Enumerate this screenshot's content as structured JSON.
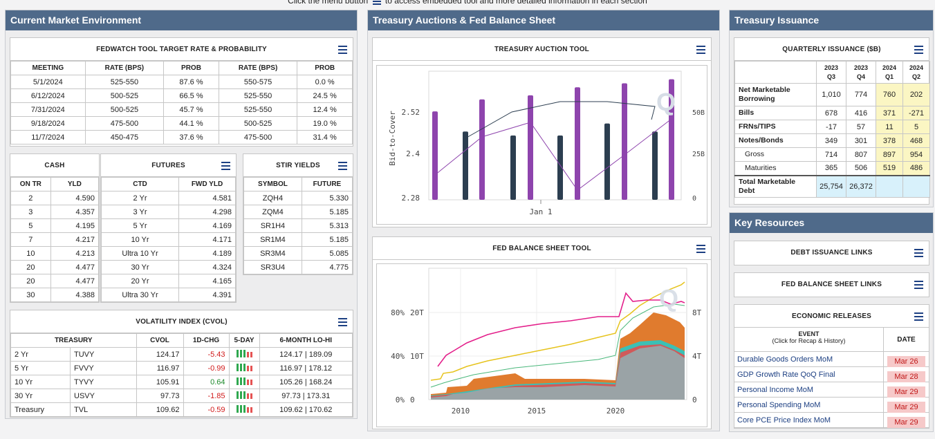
{
  "top_note": {
    "before": "Click the menu button",
    "after": "to access embedded tool and more detailed information in each section"
  },
  "sections": {
    "market": "Current Market Environment",
    "auctions": "Treasury Auctions & Fed Balance Sheet",
    "issuance": "Treasury Issuance",
    "resources": "Key Resources"
  },
  "fedwatch": {
    "title": "FEDWATCH TOOL TARGET RATE & PROBABILITY",
    "headers": [
      "MEETING",
      "RATE (BPS)",
      "PROB",
      "RATE (BPS)",
      "PROB"
    ],
    "rows": [
      [
        "5/1/2024",
        "525-550",
        "87.6 %",
        "550-575",
        "0.0 %"
      ],
      [
        "6/12/2024",
        "500-525",
        "66.5 %",
        "525-550",
        "24.5 %"
      ],
      [
        "7/31/2024",
        "500-525",
        "45.7 %",
        "525-550",
        "12.4 %"
      ],
      [
        "9/18/2024",
        "475-500",
        "44.1 %",
        "500-525",
        "19.0 %"
      ],
      [
        "11/7/2024",
        "450-475",
        "37.6 %",
        "475-500",
        "31.4 %"
      ]
    ]
  },
  "cash": {
    "title": "CASH",
    "headers": [
      "ON TR",
      "YLD"
    ],
    "rows": [
      [
        "2",
        "4.590"
      ],
      [
        "3",
        "4.357"
      ],
      [
        "5",
        "4.195"
      ],
      [
        "7",
        "4.217"
      ],
      [
        "10",
        "4.213"
      ],
      [
        "20",
        "4.477"
      ],
      [
        "20",
        "4.477"
      ],
      [
        "30",
        "4.388"
      ]
    ]
  },
  "futures": {
    "title": "FUTURES",
    "headers": [
      "CTD",
      "FWD YLD"
    ],
    "rows": [
      [
        "2 Yr",
        "4.581"
      ],
      [
        "3 Yr",
        "4.298"
      ],
      [
        "5 Yr",
        "4.169"
      ],
      [
        "10 Yr",
        "4.171"
      ],
      [
        "Ultra 10 Yr",
        "4.189"
      ],
      [
        "30 Yr",
        "4.324"
      ],
      [
        "20 Yr",
        "4.165"
      ],
      [
        "Ultra 30 Yr",
        "4.391"
      ]
    ]
  },
  "stir": {
    "title": "STIR YIELDS",
    "headers": [
      "SYMBOL",
      "FUTURE"
    ],
    "rows": [
      [
        "ZQH4",
        "5.330"
      ],
      [
        "ZQM4",
        "5.185"
      ],
      [
        "SR1H4",
        "5.313"
      ],
      [
        "SR1M4",
        "5.185"
      ],
      [
        "SR3M4",
        "5.085"
      ],
      [
        "SR3U4",
        "4.775"
      ]
    ]
  },
  "cvol": {
    "title": "VOLATILITY INDEX (CVOL)",
    "headers": [
      "TREASURY",
      "CVOL",
      "1D-CHG",
      "5-DAY",
      "6-MONTH LO-HI"
    ],
    "rows": [
      {
        "tenor": "2 Yr",
        "sym": "TUVY",
        "cvol": "124.17",
        "chg": "-5.43",
        "lohi": "124.17 | 189.09",
        "neg": true
      },
      {
        "tenor": "5 Yr",
        "sym": "FVVY",
        "cvol": "116.97",
        "chg": "-0.99",
        "lohi": "116.97 | 178.12",
        "neg": true
      },
      {
        "tenor": "10 Yr",
        "sym": "TYVY",
        "cvol": "105.91",
        "chg": "0.64",
        "lohi": "105.26 | 168.24",
        "neg": false
      },
      {
        "tenor": "30 Yr",
        "sym": "USVY",
        "cvol": "97.73",
        "chg": "-1.85",
        "lohi": "97.73 | 173.31",
        "neg": true
      },
      {
        "tenor": "Treasury",
        "sym": "TVL",
        "cvol": "109.62",
        "chg": "-0.59",
        "lohi": "109.62 | 170.62",
        "neg": true
      }
    ]
  },
  "auction_tool": {
    "title": "TREASURY AUCTION TOOL",
    "chart_data": {
      "type": "bar",
      "ylabel": "Bid-to-Cover",
      "y_ticks": [
        "2.52",
        "2.4",
        "2.28"
      ],
      "y2_ticks": [
        "50B",
        "25B",
        "0"
      ],
      "x_label_tick": "Jan 1",
      "ylim": [
        2.28,
        2.6
      ],
      "series": [
        {
          "color": "#8e44ad",
          "values": [
            2.5,
            2.53,
            2.54,
            2.56,
            2.57,
            2.58
          ]
        },
        {
          "color": "#2c3e50",
          "values": [
            2.45,
            2.44,
            2.44,
            2.47,
            2.45
          ]
        }
      ]
    }
  },
  "balance_tool": {
    "title": "FED BALANCE SHEET TOOL",
    "chart_data": {
      "type": "area",
      "y_ticks_pct": [
        "80%",
        "40%",
        "0%"
      ],
      "y_ticks_t": [
        "20T",
        "10T",
        "0"
      ],
      "y2_ticks": [
        "8T",
        "4T",
        "0"
      ],
      "x_ticks": [
        "2010",
        "2015",
        "2020"
      ]
    }
  },
  "quarterly": {
    "title": "QUARTERLY ISSUANCE ($B)",
    "cols": [
      [
        "2023",
        "Q3"
      ],
      [
        "2023",
        "Q4"
      ],
      [
        "2024",
        "Q1"
      ],
      [
        "2024",
        "Q2"
      ]
    ],
    "rows": [
      {
        "label": "Net Marketable Borrowing",
        "vals": [
          "1,010",
          "774",
          "760",
          "202"
        ],
        "bold": true
      },
      {
        "label": "Bills",
        "vals": [
          "678",
          "416",
          "371",
          "-271"
        ],
        "bold": true
      },
      {
        "label": "FRNs/TIPS",
        "vals": [
          "-17",
          "57",
          "11",
          "5"
        ],
        "bold": true
      },
      {
        "label": "Notes/Bonds",
        "vals": [
          "349",
          "301",
          "378",
          "468"
        ],
        "bold": true
      },
      {
        "label": "Gross",
        "vals": [
          "714",
          "807",
          "897",
          "954"
        ],
        "bold": false
      },
      {
        "label": "Maturities",
        "vals": [
          "365",
          "506",
          "519",
          "486"
        ],
        "bold": false
      }
    ],
    "total": {
      "label": "Total Marketable Debt",
      "vals": [
        "25,754",
        "26,372",
        "",
        ""
      ]
    }
  },
  "resources": {
    "debt_links": "DEBT ISSUANCE LINKS",
    "fed_links": "FED BALANCE SHEET LINKS",
    "econ": {
      "title": "ECONOMIC RELEASES",
      "event_header": "EVENT",
      "event_sub": "(Click for Recap & History)",
      "date_header": "DATE",
      "rows": [
        {
          "event": "Durable Goods Orders MoM",
          "date": "Mar 26"
        },
        {
          "event": "GDP Growth Rate QoQ Final",
          "date": "Mar 28"
        },
        {
          "event": "Personal Income MoM",
          "date": "Mar 29"
        },
        {
          "event": "Personal Spending MoM",
          "date": "Mar 29"
        },
        {
          "event": "Core PCE Price Index MoM",
          "date": "Mar 29"
        }
      ]
    }
  }
}
